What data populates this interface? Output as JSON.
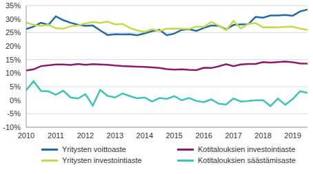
{
  "chart_data": {
    "type": "line",
    "categories": [
      "2010",
      null,
      null,
      null,
      "2011",
      null,
      null,
      null,
      "2012",
      null,
      null,
      null,
      "2013",
      null,
      null,
      null,
      "2014",
      null,
      null,
      null,
      "2015",
      null,
      null,
      null,
      "2016",
      null,
      null,
      null,
      "2017",
      null,
      null,
      null,
      "2018",
      null,
      null,
      null,
      "2019",
      null,
      null
    ],
    "series": [
      {
        "name": "Yritysten voittoaste",
        "color": "#1f6aa5",
        "values": [
          26.3,
          27.2,
          28.6,
          27.8,
          31.0,
          29.6,
          28.6,
          27.9,
          27.5,
          27.6,
          25.8,
          24.1,
          24.4,
          24.3,
          24.4,
          24.0,
          24.7,
          25.5,
          26.0,
          24.0,
          24.6,
          26.0,
          26.2,
          25.6,
          26.7,
          27.6,
          27.5,
          26.2,
          27.8,
          28.0,
          28.1,
          30.8,
          30.5,
          31.3,
          31.3,
          31.5,
          31.2,
          32.8,
          33.5
        ]
      },
      {
        "name": "Kotitalouksien investointiaste",
        "color": "#8b1a6e",
        "values": [
          11.0,
          11.4,
          12.6,
          12.9,
          13.2,
          13.2,
          13.0,
          13.4,
          13.1,
          13.3,
          13.2,
          13.1,
          12.8,
          12.6,
          12.5,
          12.4,
          12.3,
          12.1,
          11.9,
          11.5,
          11.3,
          11.4,
          11.2,
          11.1,
          12.0,
          11.9,
          12.5,
          13.3,
          12.6,
          13.2,
          13.4,
          13.4,
          14.1,
          13.9,
          14.1,
          14.3,
          14.0,
          13.6,
          13.5
        ]
      },
      {
        "name": "Yritysten investointiaste",
        "color": "#c5d94a",
        "values": [
          28.8,
          27.8,
          27.5,
          27.9,
          26.6,
          26.4,
          27.3,
          27.6,
          28.4,
          28.9,
          28.6,
          29.0,
          28.0,
          28.2,
          26.7,
          25.8,
          25.2,
          26.2,
          25.6,
          26.4,
          26.5,
          26.4,
          26.3,
          27.2,
          27.1,
          28.9,
          27.6,
          25.9,
          29.3,
          26.5,
          28.2,
          28.5,
          26.9,
          27.0,
          26.9,
          27.1,
          27.2,
          26.5,
          26.0
        ]
      },
      {
        "name": "Kotitalouksien säästämisaste",
        "color": "#3cc4b6",
        "values": [
          3.7,
          7.0,
          3.4,
          3.3,
          2.0,
          3.5,
          1.0,
          0.6,
          2.2,
          -2.0,
          3.8,
          1.6,
          1.0,
          2.5,
          1.5,
          0.7,
          1.0,
          -0.5,
          0.8,
          0.5,
          1.5,
          0.0,
          0.8,
          -0.3,
          -0.7,
          0.3,
          -1.3,
          -1.6,
          0.6,
          -0.5,
          -0.3,
          0.0,
          0.0,
          -2.2,
          0.6,
          -1.7,
          0.4,
          3.3,
          2.7
        ]
      }
    ],
    "ylim": [
      -10,
      35
    ],
    "yticks": [
      {
        "value": -10,
        "label": "-10%"
      },
      {
        "value": -5,
        "label": "-5%"
      },
      {
        "value": 0,
        "label": "0%"
      },
      {
        "value": 5,
        "label": "5%"
      },
      {
        "value": 10,
        "label": "10%"
      },
      {
        "value": 15,
        "label": "15%"
      },
      {
        "value": 20,
        "label": "20%"
      },
      {
        "value": 25,
        "label": "25%"
      },
      {
        "value": 30,
        "label": "30%"
      },
      {
        "value": 35,
        "label": "35%"
      }
    ],
    "grid": true,
    "legend": "bottom"
  }
}
